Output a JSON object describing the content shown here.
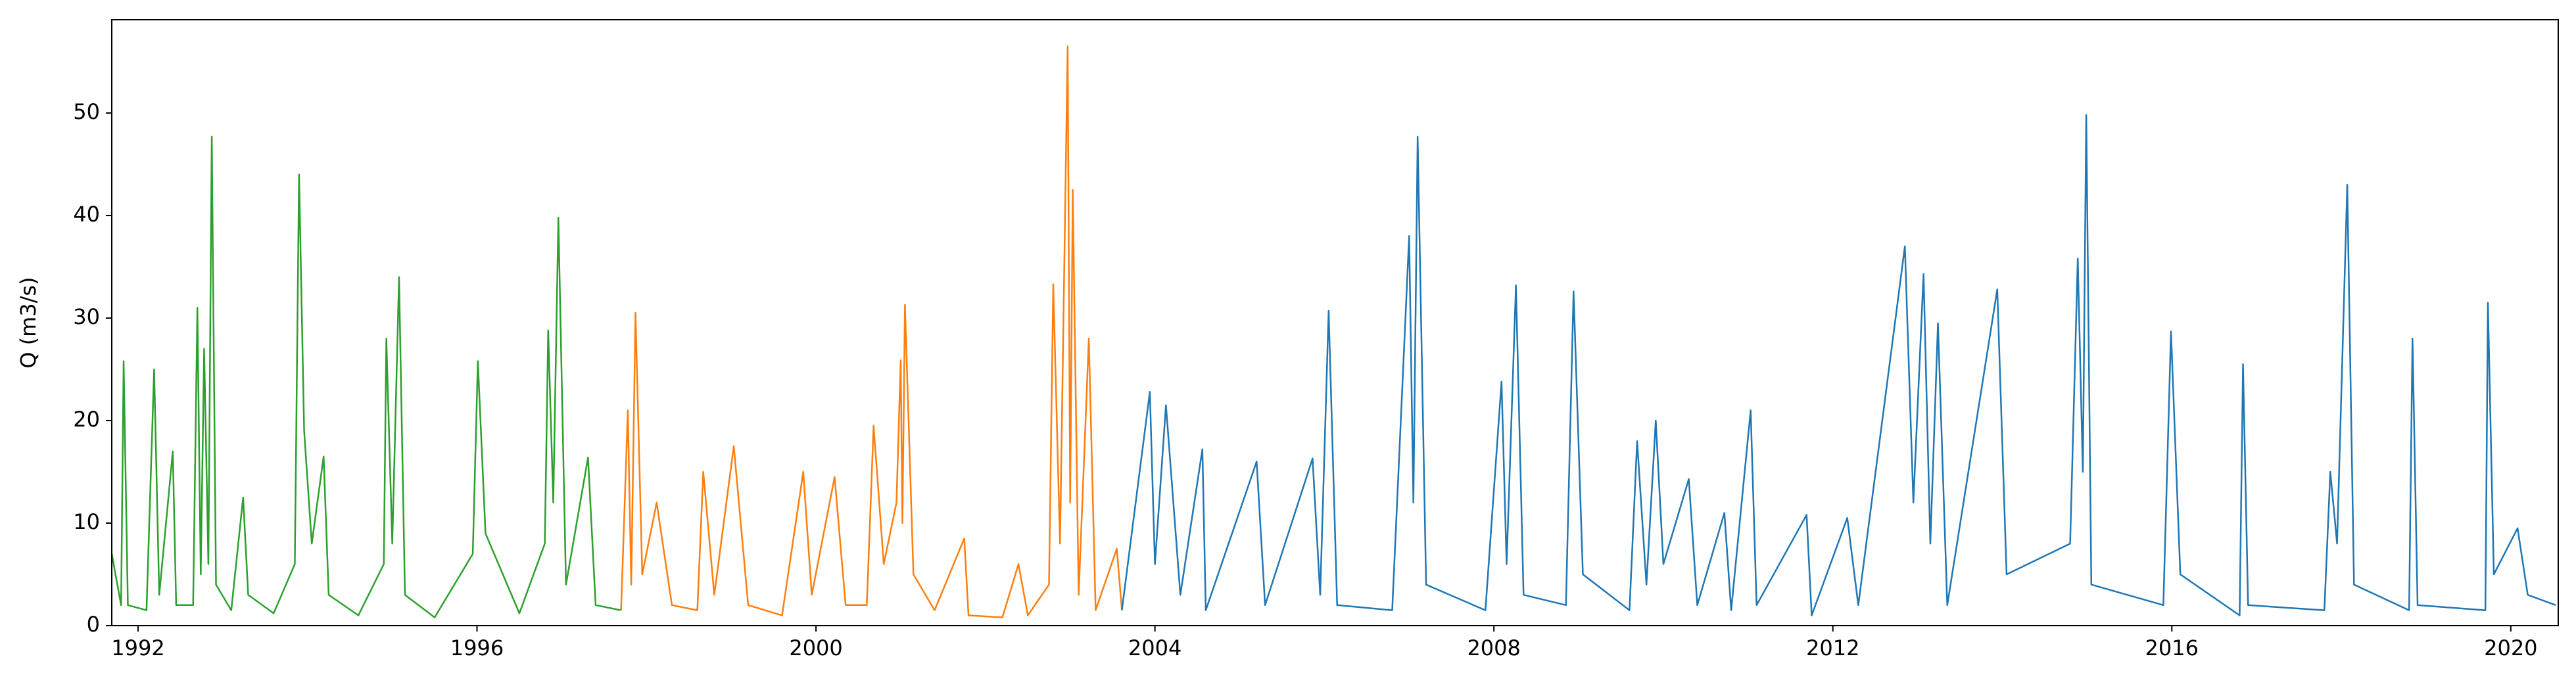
{
  "chart_data": {
    "type": "line",
    "ylabel": "Q (m3/s)",
    "xlim": [
      1991.69,
      2020.56
    ],
    "xticks": [
      1992,
      1996,
      2000,
      2004,
      2008,
      2012,
      2016,
      2020
    ],
    "ylim": [
      0,
      59.1
    ],
    "yticks": [
      0,
      10,
      20,
      30,
      40,
      50
    ],
    "grid": false,
    "series": [
      {
        "color": "#2ca02c",
        "x": [
          1991.69,
          1991.8,
          1991.83,
          1991.88,
          1992.1,
          1992.19,
          1992.25,
          1992.41,
          1992.45,
          1992.65,
          1992.7,
          1992.74,
          1992.78,
          1992.83,
          1992.87,
          1992.92,
          1993.1,
          1993.24,
          1993.3,
          1993.6,
          1993.85,
          1993.9,
          1993.96,
          1994.05,
          1994.19,
          1994.25,
          1994.6,
          1994.9,
          1994.93,
          1995.0,
          1995.08,
          1995.15,
          1995.5,
          1995.95,
          1996.01,
          1996.1,
          1996.5,
          1996.8,
          1996.84,
          1996.9,
          1996.96,
          1997.05,
          1997.31,
          1997.4,
          1997.7
        ],
        "values": [
          7,
          2,
          25.8,
          2,
          1.5,
          25,
          3,
          17,
          2,
          2,
          31,
          5,
          27,
          6,
          47.7,
          4,
          1.5,
          12.5,
          3,
          1.2,
          6,
          44,
          19,
          8,
          16.5,
          3,
          1,
          6,
          28,
          8,
          34,
          3,
          0.8,
          7,
          25.8,
          9,
          1.2,
          8,
          28.8,
          12,
          39.8,
          4,
          16.4,
          2,
          1.5
        ]
      },
      {
        "color": "#ff7f0e",
        "x": [
          1997.7,
          1997.78,
          1997.82,
          1997.87,
          1997.95,
          1998.12,
          1998.3,
          1998.6,
          1998.67,
          1998.8,
          1999.03,
          1999.2,
          1999.6,
          1999.85,
          1999.95,
          2000.22,
          2000.35,
          2000.6,
          2000.68,
          2000.8,
          2000.95,
          2001.0,
          2001.02,
          2001.05,
          2001.15,
          2001.4,
          2001.75,
          2001.8,
          2002.2,
          2002.39,
          2002.5,
          2002.75,
          2002.8,
          2002.88,
          2002.97,
          2003.0,
          2003.03,
          2003.1,
          2003.22,
          2003.3,
          2003.55,
          2003.61
        ],
        "values": [
          1.5,
          21,
          4,
          30.5,
          5,
          12,
          2,
          1.5,
          15,
          3,
          17.5,
          2,
          1,
          15,
          3,
          14.5,
          2,
          2,
          19.5,
          6,
          12,
          25.9,
          10,
          31.3,
          5,
          1.5,
          8.5,
          1,
          0.8,
          6,
          1,
          4,
          33.3,
          8,
          56.5,
          12,
          42.5,
          3,
          28,
          1.5,
          7.5,
          1.5
        ]
      },
      {
        "color": "#1f77b4",
        "x": [
          2003.61,
          2003.94,
          2004.0,
          2004.13,
          2004.3,
          2004.56,
          2004.6,
          2005.2,
          2005.3,
          2005.86,
          2005.95,
          2006.05,
          2006.15,
          2006.8,
          2007.0,
          2007.05,
          2007.1,
          2007.2,
          2007.9,
          2008.09,
          2008.15,
          2008.26,
          2008.35,
          2008.85,
          2008.94,
          2009.05,
          2009.6,
          2009.69,
          2009.8,
          2009.91,
          2010.0,
          2010.3,
          2010.4,
          2010.72,
          2010.8,
          2011.03,
          2011.1,
          2011.69,
          2011.75,
          2012.17,
          2012.3,
          2012.85,
          2012.95,
          2013.07,
          2013.15,
          2013.24,
          2013.35,
          2013.94,
          2014.05,
          2014.8,
          2014.89,
          2014.95,
          2014.99,
          2015.05,
          2015.9,
          2015.99,
          2016.1,
          2016.8,
          2016.84,
          2016.9,
          2017.8,
          2017.87,
          2017.95,
          2018.07,
          2018.15,
          2018.8,
          2018.84,
          2018.9,
          2019.7,
          2019.73,
          2019.8,
          2020.08,
          2020.2,
          2020.53
        ],
        "values": [
          1.5,
          22.8,
          6,
          21.5,
          3,
          17.2,
          1.5,
          16,
          2,
          16.3,
          3,
          30.7,
          2,
          1.5,
          38,
          12,
          47.7,
          4,
          1.5,
          23.8,
          6,
          33.2,
          3,
          2,
          32.6,
          5,
          1.5,
          18,
          4,
          20,
          6,
          14.3,
          2,
          11,
          1.5,
          21,
          2,
          10.8,
          1,
          10.5,
          2,
          37,
          12,
          34.3,
          8,
          29.5,
          2,
          32.8,
          5,
          8,
          35.8,
          15,
          49.8,
          4,
          2,
          28.7,
          5,
          1,
          25.5,
          2,
          1.5,
          15,
          8,
          43,
          4,
          1.5,
          28,
          2,
          1.5,
          31.5,
          5,
          9.5,
          3,
          2
        ]
      }
    ]
  }
}
